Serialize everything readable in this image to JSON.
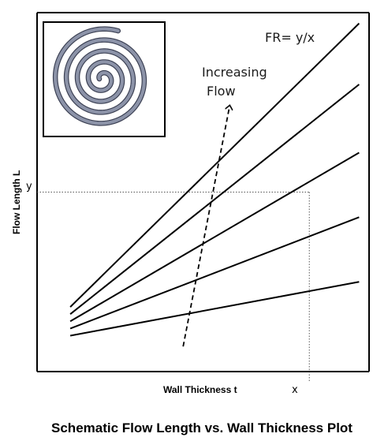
{
  "chart_data": {
    "type": "line",
    "title": "Schematic Flow Length  vs. Wall Thickness Plot",
    "xlabel": "Wall Thickness t",
    "ylabel": "Flow Length  L",
    "x_marker_label": "x",
    "y_marker_label": "y",
    "formula": "FR= y/x",
    "arrow_label_line1": "Increasing",
    "arrow_label_line2": "Flow",
    "xlim": [
      0,
      100
    ],
    "ylim": [
      0,
      100
    ],
    "marker": {
      "x": 82,
      "y": 50
    },
    "arrow": {
      "from": [
        44,
        7
      ],
      "to": [
        58,
        74
      ]
    },
    "grid": false,
    "inset": "spiral-icon",
    "series": [
      {
        "x": [
          10,
          97
        ],
        "y": [
          10,
          25
        ]
      },
      {
        "x": [
          10,
          97
        ],
        "y": [
          12,
          43
        ]
      },
      {
        "x": [
          10,
          97
        ],
        "y": [
          14,
          61
        ]
      },
      {
        "x": [
          10,
          97
        ],
        "y": [
          16,
          80
        ]
      },
      {
        "x": [
          10,
          97
        ],
        "y": [
          18,
          97
        ]
      }
    ]
  },
  "colors": {
    "line": "#000000",
    "guide": "#555555",
    "spiral": "#8c93a8",
    "spiral_outline": "#3a3f52"
  }
}
